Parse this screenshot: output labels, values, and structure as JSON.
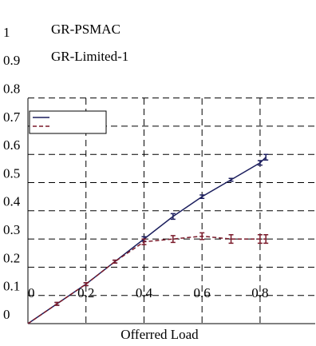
{
  "chart_data": {
    "type": "line",
    "xlabel": "Offerred Load",
    "x": [
      0,
      0.1,
      0.2,
      0.3,
      0.4,
      0.5,
      0.6,
      0.7,
      0.8,
      0.82
    ],
    "series": [
      {
        "name": "GR-PSMAC",
        "color": "#1c1f5e",
        "dashed": false,
        "values": [
          0,
          0.07,
          0.14,
          0.22,
          0.3,
          0.38,
          0.45,
          0.51,
          0.57,
          0.59
        ],
        "errors": [
          0,
          0.005,
          0.005,
          0.005,
          0.008,
          0.01,
          0.006,
          0.005,
          0.008,
          0.01
        ]
      },
      {
        "name": "GR-Limited-1",
        "color": "#7a1a2a",
        "dashed": true,
        "values": [
          0,
          0.07,
          0.14,
          0.22,
          0.29,
          0.3,
          0.31,
          0.3,
          0.3,
          0.3
        ],
        "errors": [
          0,
          0.005,
          0.005,
          0.005,
          0.01,
          0.012,
          0.012,
          0.015,
          0.015,
          0.015
        ]
      }
    ],
    "xlim": [
      0,
      0.99
    ],
    "ylim": [
      0,
      1
    ],
    "xticks": [
      0,
      0.2,
      0.4,
      0.6,
      0.8
    ],
    "yticks": [
      0,
      0.1,
      0.2,
      0.3,
      0.4,
      0.5,
      0.6,
      0.7,
      0.8,
      0.9,
      1
    ],
    "grid": true
  }
}
